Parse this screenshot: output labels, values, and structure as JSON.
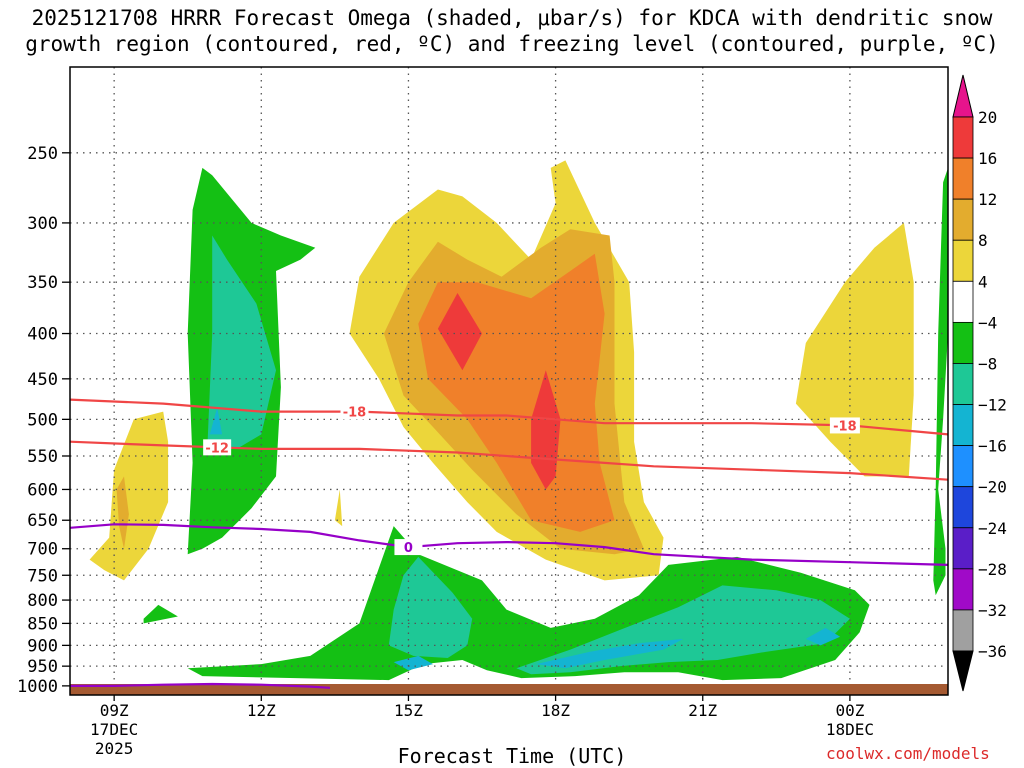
{
  "title": {
    "line1": "2025121708 HRRR Forecast Omega (shaded, μbar/s) for KDCA with dendritic snow",
    "line2": "growth region (contoured, red, ºC) and freezing level (contoured, purple, ºC)"
  },
  "xlabel": "Forecast Time (UTC)",
  "credit": "coolwx.com/models",
  "chart_data": {
    "type": "heatmap",
    "title": "2025121708 HRRR Forecast Omega (shaded, μbar/s) for KDCA with dendritic snow growth region (contoured, red, ºC) and freezing level (contoured, purple, ºC)",
    "xlabel": "Forecast Time (UTC)",
    "ylabel": "",
    "x_ticks": [
      {
        "hour": 9,
        "label": "09Z",
        "sub1": "17DEC",
        "sub2": "2025"
      },
      {
        "hour": 12,
        "label": "12Z"
      },
      {
        "hour": 15,
        "label": "15Z"
      },
      {
        "hour": 18,
        "label": "18Z"
      },
      {
        "hour": 21,
        "label": "21Z"
      },
      {
        "hour": 24,
        "label": "00Z",
        "sub1": "18DEC"
      }
    ],
    "xlim": [
      8.1,
      26.0
    ],
    "y_ticks": [
      250,
      300,
      350,
      400,
      450,
      500,
      550,
      600,
      650,
      700,
      750,
      800,
      850,
      900,
      950,
      1000
    ],
    "ylim_hpa": [
      1024,
      200
    ],
    "grid": true,
    "colorbar": {
      "labels": [
        "20",
        "16",
        "12",
        "8",
        "4",
        "−4",
        "−8",
        "−12",
        "−16",
        "−20",
        "−24",
        "−28",
        "−32",
        "−36"
      ],
      "colors": [
        "#ee3a3a",
        "#f0802a",
        "#e3ac2e",
        "#ecd63a",
        "#ffffff",
        "#14c014",
        "#1ec896",
        "#14b4d2",
        "#1e90ff",
        "#1e46dc",
        "#5a1ec8",
        "#a00ac8",
        "#a0a0a0"
      ],
      "top_arrow_color": "#e6148c",
      "bottom_arrow_color": "#000000"
    },
    "omega_regions": [
      {
        "level": -4,
        "color": "#14c014",
        "points": [
          [
            10.5,
            710
          ],
          [
            10.6,
            560
          ],
          [
            10.5,
            400
          ],
          [
            10.6,
            290
          ],
          [
            10.8,
            260
          ],
          [
            11.0,
            265
          ],
          [
            11.8,
            300
          ],
          [
            12.4,
            310
          ],
          [
            13.1,
            320
          ],
          [
            12.8,
            330
          ],
          [
            12.3,
            340
          ],
          [
            12.4,
            460
          ],
          [
            12.3,
            580
          ],
          [
            11.8,
            630
          ],
          [
            11.2,
            680
          ],
          [
            10.8,
            700
          ]
        ]
      },
      {
        "level": -8,
        "color": "#1ec896",
        "points": [
          [
            10.9,
            540
          ],
          [
            11.0,
            400
          ],
          [
            11.0,
            310
          ],
          [
            11.3,
            330
          ],
          [
            11.9,
            370
          ],
          [
            12.3,
            440
          ],
          [
            12.0,
            520
          ],
          [
            11.5,
            540
          ]
        ]
      },
      {
        "level": -12,
        "color": "#14b4d2",
        "points": [
          [
            10.95,
            520
          ],
          [
            11.1,
            485
          ],
          [
            11.2,
            520
          ]
        ]
      },
      {
        "level": -4,
        "color": "#14c014",
        "points": [
          [
            9.6,
            840
          ],
          [
            9.9,
            810
          ],
          [
            10.3,
            835
          ],
          [
            9.6,
            850
          ]
        ]
      },
      {
        "level": -4,
        "color": "#14c014",
        "points": [
          [
            10.5,
            955
          ],
          [
            12.0,
            945
          ],
          [
            13.0,
            925
          ],
          [
            14.0,
            850
          ],
          [
            14.7,
            660
          ],
          [
            15.2,
            710
          ],
          [
            16.5,
            760
          ],
          [
            17.0,
            820
          ],
          [
            17.9,
            860
          ],
          [
            18.8,
            840
          ],
          [
            19.7,
            790
          ],
          [
            20.3,
            730
          ],
          [
            21.7,
            715
          ],
          [
            23.0,
            745
          ],
          [
            24.1,
            780
          ],
          [
            24.4,
            810
          ],
          [
            24.2,
            870
          ],
          [
            23.7,
            935
          ],
          [
            22.6,
            980
          ],
          [
            21.4,
            985
          ],
          [
            20.5,
            965
          ],
          [
            19.4,
            965
          ],
          [
            18.4,
            975
          ],
          [
            17.3,
            980
          ],
          [
            16.6,
            960
          ],
          [
            16.1,
            935
          ],
          [
            15.3,
            945
          ],
          [
            14.6,
            985
          ],
          [
            12.7,
            980
          ],
          [
            10.8,
            975
          ]
        ]
      },
      {
        "level": -8,
        "color": "#1ec896",
        "points": [
          [
            14.9,
            750
          ],
          [
            15.2,
            715
          ],
          [
            15.9,
            785
          ],
          [
            16.3,
            840
          ],
          [
            16.2,
            900
          ],
          [
            15.8,
            930
          ],
          [
            15.1,
            925
          ],
          [
            14.6,
            900
          ],
          [
            14.7,
            820
          ]
        ]
      },
      {
        "level": -8,
        "color": "#1ec896",
        "points": [
          [
            17.2,
            955
          ],
          [
            18.3,
            910
          ],
          [
            19.3,
            865
          ],
          [
            20.5,
            815
          ],
          [
            21.4,
            770
          ],
          [
            22.5,
            780
          ],
          [
            23.4,
            800
          ],
          [
            24.0,
            840
          ],
          [
            23.5,
            895
          ],
          [
            22.3,
            915
          ],
          [
            21.3,
            935
          ],
          [
            20.3,
            940
          ],
          [
            19.3,
            950
          ],
          [
            18.3,
            965
          ],
          [
            17.5,
            970
          ]
        ]
      },
      {
        "level": -12,
        "color": "#14b4d2",
        "points": [
          [
            17.6,
            945
          ],
          [
            18.7,
            915
          ],
          [
            19.7,
            895
          ],
          [
            20.6,
            885
          ],
          [
            20.2,
            910
          ],
          [
            19.0,
            935
          ],
          [
            18.2,
            955
          ]
        ]
      },
      {
        "level": -12,
        "color": "#14b4d2",
        "points": [
          [
            23.1,
            885
          ],
          [
            23.5,
            860
          ],
          [
            23.8,
            880
          ],
          [
            23.4,
            900
          ]
        ]
      },
      {
        "level": -12,
        "color": "#14b4d2",
        "points": [
          [
            14.7,
            940
          ],
          [
            15.2,
            925
          ],
          [
            15.5,
            945
          ],
          [
            15.0,
            960
          ]
        ]
      },
      {
        "level": -4,
        "color": "#14c014",
        "points": [
          [
            25.75,
            790
          ],
          [
            25.95,
            750
          ],
          [
            25.95,
            700
          ],
          [
            25.8,
            600
          ],
          [
            25.9,
            500
          ],
          [
            26.0,
            400
          ],
          [
            26.0,
            260
          ],
          [
            25.9,
            270
          ],
          [
            25.8,
            400
          ],
          [
            25.75,
            600
          ],
          [
            25.7,
            760
          ]
        ]
      },
      {
        "level": 4,
        "color": "#ecd63a",
        "points": [
          [
            8.5,
            720
          ],
          [
            8.9,
            680
          ],
          [
            9.0,
            570
          ],
          [
            9.4,
            500
          ],
          [
            10.0,
            490
          ],
          [
            10.1,
            530
          ],
          [
            10.1,
            620
          ],
          [
            9.7,
            700
          ],
          [
            9.2,
            760
          ],
          [
            8.8,
            740
          ]
        ]
      },
      {
        "level": 8,
        "color": "#e3ac2e",
        "points": [
          [
            9.1,
            660
          ],
          [
            9.05,
            600
          ],
          [
            9.2,
            580
          ],
          [
            9.3,
            640
          ],
          [
            9.2,
            700
          ]
        ]
      },
      {
        "level": 4,
        "color": "#ecd63a",
        "points": [
          [
            13.5,
            650
          ],
          [
            13.6,
            600
          ],
          [
            13.65,
            660
          ]
        ]
      },
      {
        "level": 4,
        "color": "#ecd63a",
        "points": [
          [
            13.8,
            400
          ],
          [
            14.0,
            345
          ],
          [
            14.7,
            300
          ],
          [
            15.6,
            275
          ],
          [
            16.1,
            280
          ],
          [
            16.8,
            300
          ],
          [
            17.5,
            330
          ],
          [
            18.0,
            285
          ],
          [
            17.9,
            260
          ],
          [
            18.2,
            255
          ],
          [
            18.8,
            300
          ],
          [
            19.5,
            350
          ],
          [
            19.6,
            420
          ],
          [
            19.6,
            530
          ],
          [
            19.8,
            620
          ],
          [
            20.2,
            680
          ],
          [
            20.1,
            750
          ],
          [
            19.0,
            760
          ],
          [
            17.8,
            720
          ],
          [
            16.8,
            670
          ],
          [
            16.2,
            620
          ],
          [
            15.5,
            560
          ],
          [
            14.9,
            510
          ],
          [
            14.4,
            450
          ]
        ]
      },
      {
        "level": 8,
        "color": "#e3ac2e",
        "points": [
          [
            14.5,
            400
          ],
          [
            15.0,
            350
          ],
          [
            15.6,
            315
          ],
          [
            16.2,
            330
          ],
          [
            16.9,
            345
          ],
          [
            17.7,
            320
          ],
          [
            18.3,
            305
          ],
          [
            19.1,
            310
          ],
          [
            19.2,
            350
          ],
          [
            19.2,
            480
          ],
          [
            19.4,
            620
          ],
          [
            19.8,
            700
          ],
          [
            19.2,
            710
          ],
          [
            18.1,
            700
          ],
          [
            17.2,
            640
          ],
          [
            16.3,
            570
          ],
          [
            15.5,
            510
          ],
          [
            14.9,
            470
          ]
        ]
      },
      {
        "level": 12,
        "color": "#f0802a",
        "points": [
          [
            15.2,
            390
          ],
          [
            15.6,
            350
          ],
          [
            16.4,
            350
          ],
          [
            17.5,
            365
          ],
          [
            18.3,
            340
          ],
          [
            18.8,
            325
          ],
          [
            19.0,
            380
          ],
          [
            18.8,
            480
          ],
          [
            18.9,
            560
          ],
          [
            19.2,
            650
          ],
          [
            18.5,
            670
          ],
          [
            17.5,
            650
          ],
          [
            16.8,
            560
          ],
          [
            16.2,
            500
          ],
          [
            15.4,
            450
          ]
        ]
      },
      {
        "level": 16,
        "color": "#ee3a3a",
        "points": [
          [
            15.6,
            395
          ],
          [
            16.0,
            360
          ],
          [
            16.5,
            400
          ],
          [
            16.1,
            440
          ]
        ]
      },
      {
        "level": 16,
        "color": "#ee3a3a",
        "points": [
          [
            17.5,
            500
          ],
          [
            17.8,
            440
          ],
          [
            18.1,
            500
          ],
          [
            18.0,
            580
          ],
          [
            17.8,
            600
          ],
          [
            17.5,
            560
          ]
        ]
      },
      {
        "level": 4,
        "color": "#ecd63a",
        "points": [
          [
            22.9,
            480
          ],
          [
            23.1,
            410
          ],
          [
            23.9,
            350
          ],
          [
            24.5,
            320
          ],
          [
            25.1,
            300
          ],
          [
            25.3,
            350
          ],
          [
            25.3,
            470
          ],
          [
            25.2,
            580
          ],
          [
            24.3,
            580
          ],
          [
            23.6,
            530
          ]
        ]
      }
    ],
    "contours": [
      {
        "name": "-18",
        "color": "#f04646",
        "label_at": 13.9,
        "points": [
          [
            8.1,
            475
          ],
          [
            10.0,
            480
          ],
          [
            12.0,
            490
          ],
          [
            14.0,
            490
          ],
          [
            16.0,
            495
          ],
          [
            17.0,
            495
          ],
          [
            18.0,
            500
          ],
          [
            19.0,
            505
          ],
          [
            20.0,
            505
          ],
          [
            22.0,
            505
          ],
          [
            24.0,
            508
          ],
          [
            26.0,
            520
          ]
        ]
      },
      {
        "name": "-12",
        "color": "#f04646",
        "label_at": 11.1,
        "points": [
          [
            8.1,
            530
          ],
          [
            10.0,
            535
          ],
          [
            12.0,
            540
          ],
          [
            14.0,
            540
          ],
          [
            16.0,
            545
          ],
          [
            18.0,
            555
          ],
          [
            19.0,
            560
          ],
          [
            20.0,
            565
          ],
          [
            22.0,
            570
          ],
          [
            24.0,
            575
          ],
          [
            26.0,
            585
          ]
        ]
      },
      {
        "name": "0",
        "color": "#9600c8",
        "label_at": 15.0,
        "points": [
          [
            8.1,
            663
          ],
          [
            9.0,
            657
          ],
          [
            10.0,
            658
          ],
          [
            11.0,
            662
          ],
          [
            12.0,
            665
          ],
          [
            13.0,
            670
          ],
          [
            14.0,
            685
          ],
          [
            15.0,
            697
          ],
          [
            16.0,
            690
          ],
          [
            17.0,
            688
          ],
          [
            18.0,
            690
          ],
          [
            19.0,
            697
          ],
          [
            20.0,
            710
          ],
          [
            22.0,
            720
          ],
          [
            24.0,
            725
          ],
          [
            26.0,
            730
          ]
        ]
      },
      {
        "name": "",
        "color": "#9600c8",
        "points": [
          [
            8.1,
            1000
          ],
          [
            9.0,
            1000
          ],
          [
            10.0,
            997
          ],
          [
            11.0,
            995
          ],
          [
            12.0,
            997
          ],
          [
            13.0,
            1002
          ],
          [
            13.4,
            1005
          ]
        ]
      }
    ],
    "ground_color": "#a55a32"
  }
}
